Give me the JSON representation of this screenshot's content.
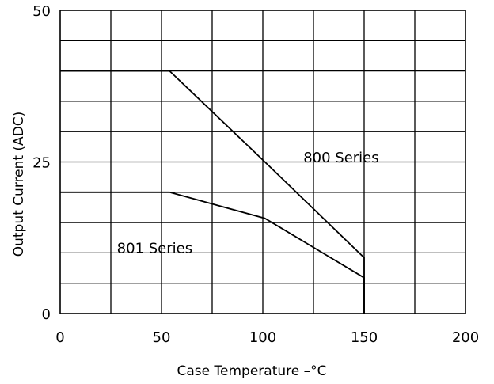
{
  "chart_data": {
    "type": "line",
    "title": "",
    "xlabel": "Case Temperature  –°C",
    "ylabel": "Output Current (ADC)",
    "xlim": [
      0,
      200
    ],
    "ylim": [
      0,
      50
    ],
    "x_ticks": [
      0,
      50,
      100,
      150,
      200
    ],
    "x_tick_labels": [
      "0",
      "50",
      "100",
      "150",
      "200"
    ],
    "y_ticks": [
      0,
      25,
      50
    ],
    "y_tick_labels": [
      "0",
      "25",
      "50"
    ],
    "grid": true,
    "x_grid_step": 25,
    "y_grid_step": 5,
    "line_color": "#000000",
    "series": [
      {
        "name": "800 Series",
        "x": [
          0,
          54,
          101,
          150,
          150
        ],
        "y": [
          40,
          40,
          25,
          9.2,
          0
        ]
      },
      {
        "name": "801 Series",
        "x": [
          0,
          54,
          101,
          150,
          150
        ],
        "y": [
          20,
          20,
          15.7,
          5.9,
          0
        ]
      }
    ],
    "annotations": [
      {
        "text": "800 Series",
        "x": 120,
        "y": 26
      },
      {
        "text": "801 Series",
        "x": 28,
        "y": 11
      }
    ]
  }
}
